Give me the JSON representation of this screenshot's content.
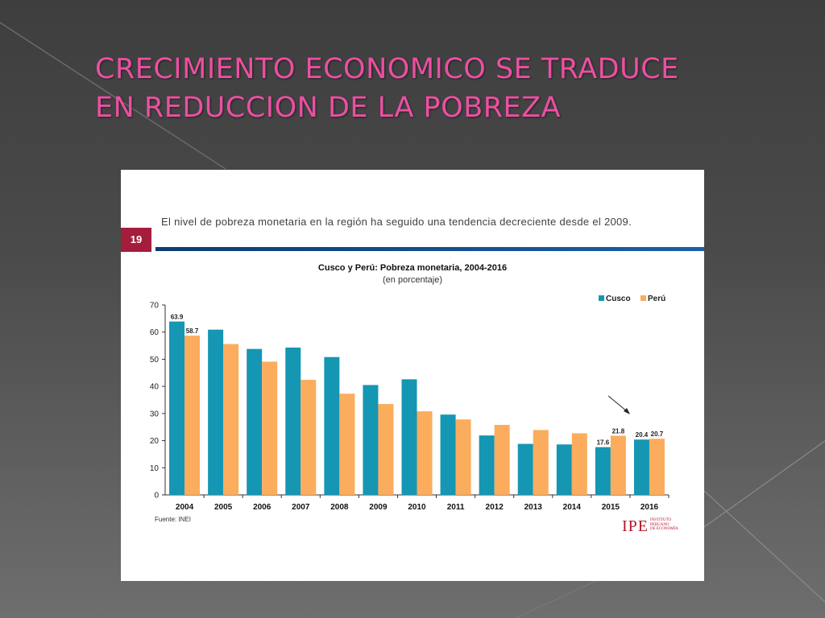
{
  "slide": {
    "title_line1": "CRECIMIENTO ECONOMICO SE TRADUCE",
    "title_line2": "EN REDUCCION DE LA POBREZA"
  },
  "panel": {
    "page_number": "19",
    "intro": "El nivel de pobreza monetaria en la región ha seguido una tendencia decreciente desde el 2009.",
    "source": "Fuente: INEI",
    "logo": {
      "main": "IPE",
      "sub_line1": "INSTITUTO",
      "sub_line2": "PERUANO",
      "sub_line3": "DE ECONOMÍA"
    }
  },
  "colors": {
    "cusco": "#1596b3",
    "peru": "#fbac5d",
    "title": "#ec4fa2"
  },
  "chart_data": {
    "type": "bar",
    "title": "Cusco y Perú: Pobreza monetaria, 2004-2016",
    "subtitle": "(en porcentaje)",
    "categories": [
      "2004",
      "2005",
      "2006",
      "2007",
      "2008",
      "2009",
      "2010",
      "2011",
      "2012",
      "2013",
      "2014",
      "2015",
      "2016"
    ],
    "series": [
      {
        "name": "Cusco",
        "values": [
          63.9,
          60.9,
          53.8,
          54.3,
          50.8,
          40.5,
          42.6,
          29.6,
          21.9,
          18.8,
          18.6,
          17.6,
          20.4
        ]
      },
      {
        "name": "Perú",
        "values": [
          58.7,
          55.6,
          49.1,
          42.4,
          37.3,
          33.5,
          30.8,
          27.8,
          25.8,
          23.9,
          22.7,
          21.8,
          20.7
        ]
      }
    ],
    "labeled": {
      "Cusco": {
        "0": "63.9",
        "11": "17.6",
        "12": "20.4"
      },
      "Perú": {
        "0": "58.7",
        "11": "21.8",
        "12": "20.7"
      }
    },
    "yticks": [
      "0",
      "10",
      "20",
      "30",
      "40",
      "50",
      "60",
      "70"
    ],
    "ylim": [
      0,
      70
    ],
    "grid": false,
    "legend": "top-right"
  }
}
